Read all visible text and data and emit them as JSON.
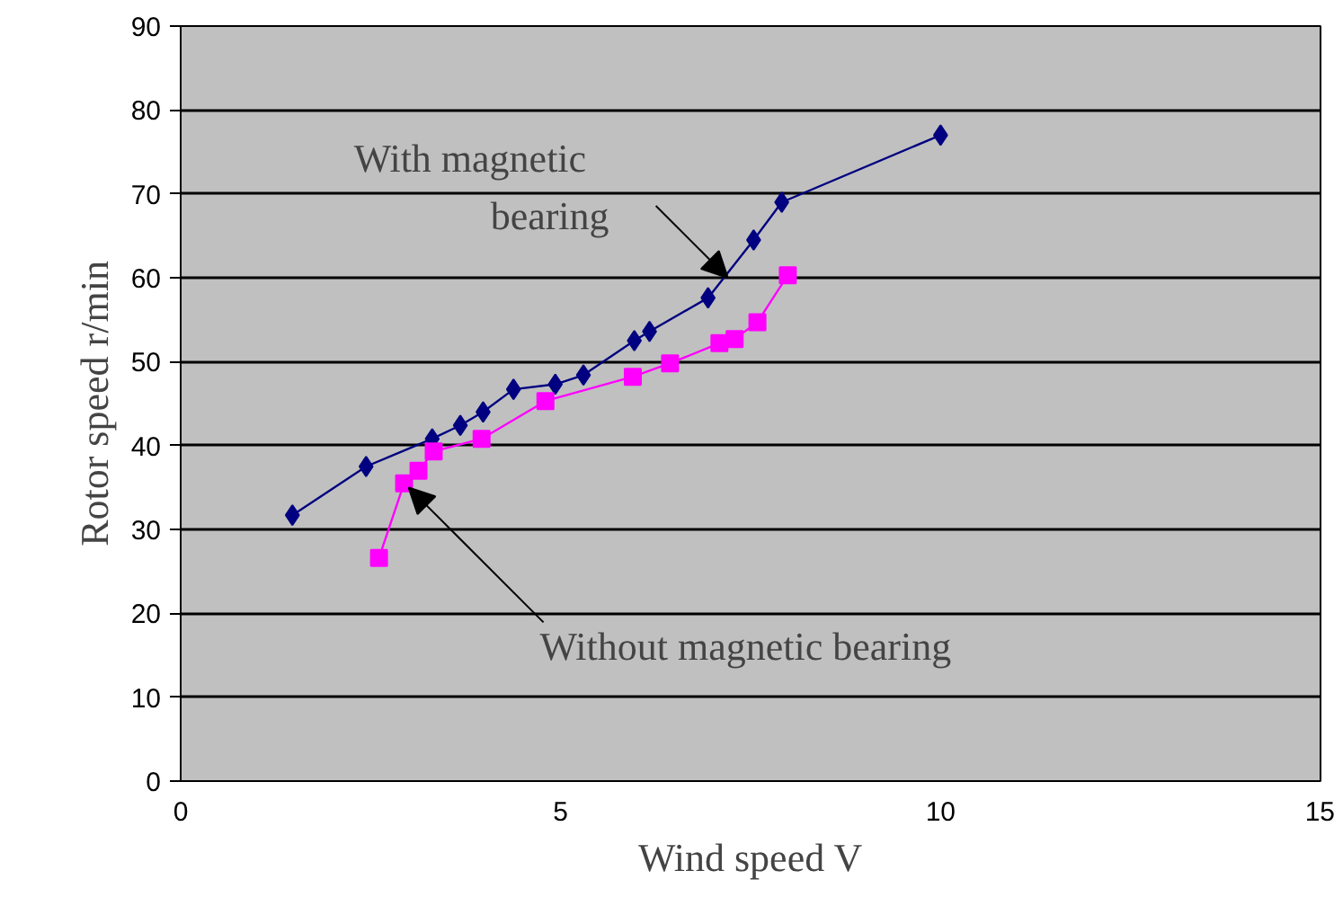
{
  "chart_data": {
    "type": "line",
    "xlabel": "Wind speed V",
    "ylabel": "Rotor speed r/min",
    "xlim": [
      0,
      15
    ],
    "xticks": [
      0,
      5,
      10,
      15
    ],
    "ylim": [
      0,
      90
    ],
    "yticks": [
      0,
      10,
      20,
      30,
      40,
      50,
      60,
      70,
      80,
      90
    ],
    "grid": "y",
    "series": [
      {
        "color": "#000080",
        "marker": "diamond",
        "x": [
          1.47,
          2.44,
          3.31,
          3.68,
          3.98,
          4.38,
          4.93,
          5.3,
          5.97,
          6.17,
          6.94,
          7.54,
          7.91,
          10.0
        ],
        "values": [
          31.7,
          37.5,
          40.8,
          42.4,
          44,
          46.7,
          47.3,
          48.4,
          52.5,
          53.6,
          57.6,
          64.5,
          69,
          77
        ]
      },
      {
        "color": "#ff00ff",
        "marker": "square",
        "x": [
          2.61,
          2.94,
          3.13,
          3.33,
          3.96,
          4.8,
          5.95,
          6.44,
          7.09,
          7.29,
          7.59,
          7.99
        ],
        "values": [
          26.6,
          35.5,
          37,
          39.3,
          40.8,
          45.3,
          48.2,
          49.8,
          52.2,
          52.7,
          54.7,
          60.3
        ]
      }
    ],
    "annotations": [
      {
        "text": "With magnetic bearing",
        "x": 7.2,
        "y": 60
      },
      {
        "text": "Without magnetic bearing",
        "x": 3.0,
        "y": 35
      }
    ]
  }
}
